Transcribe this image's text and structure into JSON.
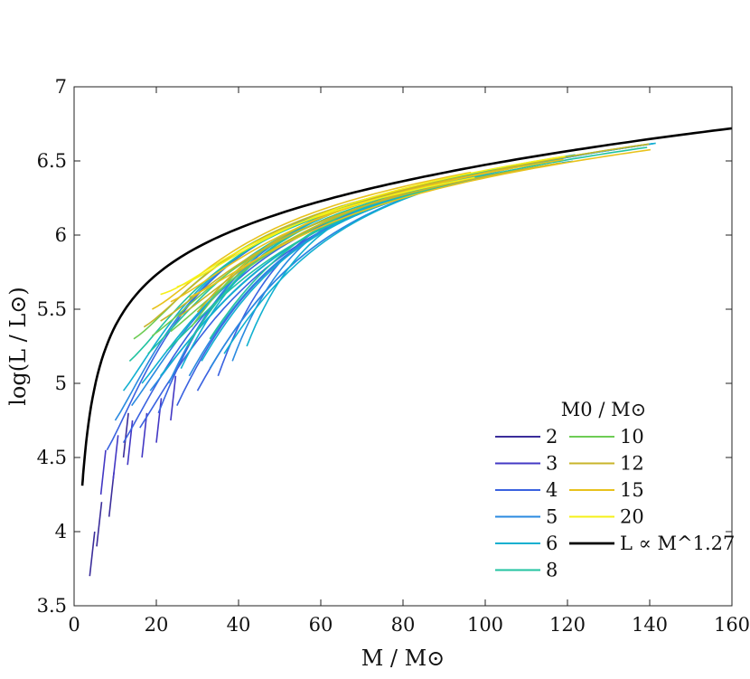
{
  "chart_data": {
    "type": "line",
    "title": "",
    "xlabel": "M / M⊙",
    "ylabel": "log(L / L⊙)",
    "xlim": [
      0,
      160
    ],
    "ylim": [
      3.5,
      7
    ],
    "xticks": [
      0,
      20,
      40,
      60,
      80,
      100,
      120,
      140,
      160
    ],
    "yticks": [
      3.5,
      4,
      4.5,
      5,
      5.5,
      6,
      6.5,
      7
    ],
    "grid": false,
    "legend": {
      "title": "M0 / M⊙",
      "placement": "lower-right",
      "entries": [
        "2",
        "3",
        "4",
        "5",
        "6",
        "8",
        "10",
        "12",
        "15",
        "20",
        "L ∝ M^1.27"
      ]
    },
    "series": [
      {
        "name": "2",
        "color": "#3b2d9a",
        "start_M": [
          3.8,
          5.5,
          8.5,
          12.0
        ],
        "start_logL": [
          3.7,
          3.9,
          4.1,
          4.5
        ],
        "segment": "short"
      },
      {
        "name": "3",
        "color": "#4338c4",
        "start_M": [
          6.5,
          9.5,
          13.0,
          16.5,
          20.0,
          23.5
        ],
        "start_logL": [
          4.25,
          4.35,
          4.45,
          4.5,
          4.6,
          4.75
        ],
        "segment": "short"
      },
      {
        "name": "4",
        "color": "#3a62e0",
        "start_M": [
          8.0,
          12.0,
          16.0,
          20.5,
          25.0,
          30.0,
          35.0
        ],
        "start_logL": [
          4.55,
          4.6,
          4.7,
          4.8,
          4.85,
          4.95,
          5.05
        ],
        "segment": "long"
      },
      {
        "name": "5",
        "color": "#2a8ae0",
        "start_M": [
          10.0,
          14.0,
          18.5,
          23.0,
          28.0,
          33.0,
          38.5
        ],
        "start_logL": [
          4.75,
          4.85,
          4.95,
          5.0,
          5.05,
          5.1,
          5.15
        ],
        "segment": "long"
      },
      {
        "name": "6",
        "color": "#11b0d0",
        "start_M": [
          12.0,
          16.5,
          21.0,
          26.0,
          31.0,
          36.5,
          42.0
        ],
        "start_logL": [
          4.95,
          5.0,
          5.05,
          5.1,
          5.15,
          5.2,
          5.25
        ],
        "segment": "long"
      },
      {
        "name": "8",
        "color": "#22c3a0",
        "start_M": [
          13.5,
          18.0,
          22.5,
          27.5,
          33.0
        ],
        "start_logL": [
          5.15,
          5.2,
          5.22,
          5.25,
          5.3
        ],
        "segment": "long"
      },
      {
        "name": "10",
        "color": "#6ecc55",
        "start_M": [
          14.5,
          19.0,
          23.5,
          28.5
        ],
        "start_logL": [
          5.3,
          5.32,
          5.35,
          5.38
        ],
        "segment": "long"
      },
      {
        "name": "12",
        "color": "#c8b42a",
        "start_M": [
          17.0,
          21.0,
          25.5,
          30.0
        ],
        "start_logL": [
          5.38,
          5.42,
          5.45,
          5.48
        ],
        "segment": "long"
      },
      {
        "name": "15",
        "color": "#e8c21c",
        "start_M": [
          19.0,
          23.5,
          28.0
        ],
        "start_logL": [
          5.5,
          5.55,
          5.58
        ],
        "segment": "long"
      },
      {
        "name": "20",
        "color": "#f5f018",
        "start_M": [
          21.0,
          25.0
        ],
        "start_logL": [
          5.6,
          5.65
        ],
        "segment": "long"
      },
      {
        "name": "L ∝ M^1.27",
        "color": "#000000",
        "power": 1.27,
        "M_range": [
          2,
          160
        ],
        "logL_at_2": 4.31,
        "logL_at_160": 6.72
      }
    ]
  }
}
